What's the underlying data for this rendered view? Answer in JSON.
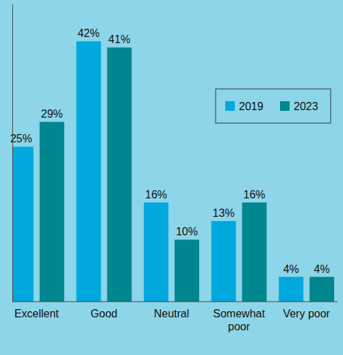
{
  "chart_data": {
    "type": "bar",
    "categories": [
      "Excellent",
      "Good",
      "Neutral",
      "Somewhat poor",
      "Very poor"
    ],
    "series": [
      {
        "name": "2019",
        "color": "#00a8de",
        "values": [
          25,
          42,
          16,
          13,
          4
        ],
        "value_labels": [
          "25%",
          "42%",
          "16%",
          "13%",
          "4%"
        ]
      },
      {
        "name": "2023",
        "color": "#00868f",
        "values": [
          29,
          41,
          10,
          16,
          4
        ],
        "value_labels": [
          "29%",
          "41%",
          "10%",
          "16%",
          "4%"
        ]
      }
    ],
    "ylim": [
      0,
      48
    ],
    "data_labels": true,
    "tick_labels": "x",
    "legend": "upper right",
    "grid": false
  }
}
